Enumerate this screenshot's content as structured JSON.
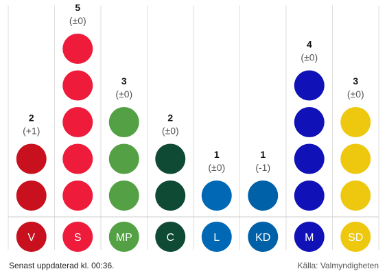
{
  "chart_data": {
    "type": "bar",
    "categories": [
      "V",
      "S",
      "MP",
      "C",
      "L",
      "KD",
      "M",
      "SD"
    ],
    "values": [
      2,
      5,
      3,
      2,
      1,
      1,
      4,
      3
    ],
    "changes": [
      "(+1)",
      "(±0)",
      "(±0)",
      "(±0)",
      "(±0)",
      "(-1)",
      "(±0)",
      "(±0)"
    ],
    "colors": [
      "#c8101f",
      "#ee1c3a",
      "#53a144",
      "#0f4a35",
      "#0068b4",
      "#0061a8",
      "#1012b8",
      "#eec80f"
    ],
    "title": "",
    "xlabel": "",
    "ylabel": ""
  },
  "footer": {
    "updated": "Senast uppdaterad kl. 00:36.",
    "source": "Källa: Valmyndigheten"
  }
}
